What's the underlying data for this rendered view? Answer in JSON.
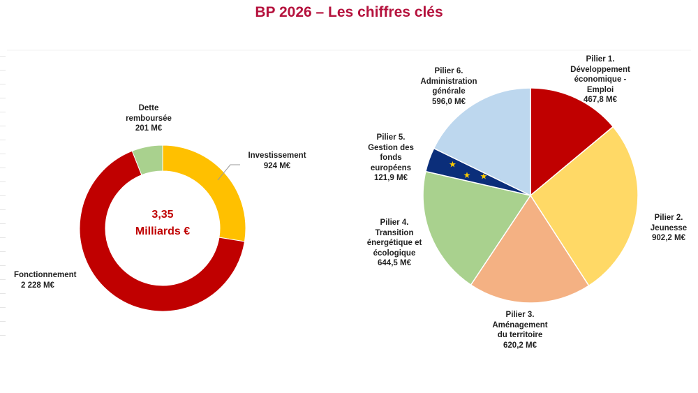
{
  "title": "BP 2026 – Les chiffres clés",
  "colors": {
    "title": "#b5123d",
    "fonctionnement": "#c00000",
    "dette": "#a9d18e",
    "investissement": "#ffc000",
    "pilier1": "#c00000",
    "pilier2": "#ffd966",
    "pilier3": "#f4b183",
    "pilier4": "#a9d18e",
    "pilier5": "#0b2e7a",
    "pilier6": "#bdd7ee"
  },
  "donut": {
    "total_line1": "3,35",
    "total_line2": "Milliards €"
  },
  "chart_data": [
    {
      "type": "pie",
      "variant": "donut",
      "title": "",
      "categories": [
        "Dette remboursée",
        "Investissement",
        "Fonctionnement"
      ],
      "values": [
        201,
        924,
        2228
      ],
      "unit": "M€",
      "labels": [
        {
          "lines": [
            "Dette",
            "remboursée",
            "201 M€"
          ]
        },
        {
          "lines": [
            "Investissement",
            "924 M€"
          ]
        },
        {
          "lines": [
            "Fonctionnement",
            "2 228 M€"
          ]
        }
      ]
    },
    {
      "type": "pie",
      "title": "",
      "categories": [
        "Pilier 1",
        "Pilier 2",
        "Pilier 3",
        "Pilier 4",
        "Pilier 5",
        "Pilier 6"
      ],
      "values": [
        467.8,
        902.2,
        620.2,
        644.5,
        121.9,
        596.0
      ],
      "unit": "M€",
      "labels": [
        {
          "lines": [
            "Pilier 1.",
            "Développement",
            "économique -",
            "Emploi",
            "467,8 M€"
          ]
        },
        {
          "lines": [
            "Pilier 2.",
            "Jeunesse",
            "902,2  M€"
          ]
        },
        {
          "lines": [
            "Pilier 3.",
            "Aménagement",
            "du territoire",
            "620,2 M€"
          ]
        },
        {
          "lines": [
            "Pilier 4.",
            "Transition",
            "énergétique et",
            "écologique",
            "644,5 M€"
          ]
        },
        {
          "lines": [
            "Pilier 5.",
            "Gestion des",
            "fonds",
            "européens",
            "121,9 M€"
          ]
        },
        {
          "lines": [
            "Pilier 6.",
            "Administration",
            "générale",
            "596,0 M€"
          ]
        }
      ]
    }
  ]
}
